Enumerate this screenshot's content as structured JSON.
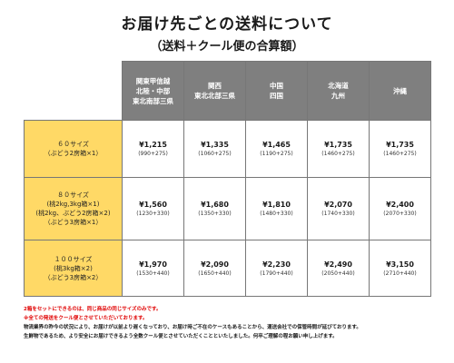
{
  "title": "お届け先ごとの送料について",
  "subtitle": "（送料＋クール便の合算額）",
  "table": {
    "regions": [
      [
        "関東甲信越",
        "北陸・中部",
        "東北南部三県"
      ],
      [
        "関西",
        "東北北部三県"
      ],
      [
        "中国",
        "四国"
      ],
      [
        "北海道",
        "九州"
      ],
      [
        "沖縄"
      ]
    ],
    "rows": [
      {
        "size_lines": [
          "６０サイズ",
          "（ぶどう2房箱×1）"
        ],
        "cells": [
          {
            "price": "¥1,215",
            "breakdown": "(990+275)"
          },
          {
            "price": "¥1,335",
            "breakdown": "(1060+275)"
          },
          {
            "price": "¥1,465",
            "breakdown": "(1190+275)"
          },
          {
            "price": "¥1,735",
            "breakdown": "(1460+275)"
          },
          {
            "price": "¥1,735",
            "breakdown": "(1460+275)"
          }
        ]
      },
      {
        "size_lines": [
          "８０サイズ",
          "(桃2kg,3kg箱×1)",
          "(桃2kg、ぶどう2房箱×2)",
          "（ぶどう3房箱×1）"
        ],
        "cells": [
          {
            "price": "¥1,560",
            "breakdown": "(1230+330)"
          },
          {
            "price": "¥1,680",
            "breakdown": "(1350+330)"
          },
          {
            "price": "¥1,810",
            "breakdown": "(1480+330)"
          },
          {
            "price": "¥2,070",
            "breakdown": "(1740+330)"
          },
          {
            "price": "¥2,400",
            "breakdown": "(2070+330)"
          }
        ]
      },
      {
        "size_lines": [
          "１００サイズ",
          "(桃3kg箱×2)",
          "（ぶどう3房箱×2）"
        ],
        "cells": [
          {
            "price": "¥1,970",
            "breakdown": "(1530+440)"
          },
          {
            "price": "¥2,090",
            "breakdown": "(1650+440)"
          },
          {
            "price": "¥2,230",
            "breakdown": "(1790+440)"
          },
          {
            "price": "¥2,490",
            "breakdown": "(2050+440)"
          },
          {
            "price": "¥3,150",
            "breakdown": "(2710+440)"
          }
        ]
      }
    ]
  },
  "notes": [
    {
      "text": "2箱をセットにできるのは、同じ商品の同じサイズのみです。",
      "color": "red"
    },
    {
      "text": "※全ての発送をクール便とさせていただいております。",
      "color": "red"
    },
    {
      "text": "物流業界の昨今の状況により、お届けが以前より遅くなっており、お届け時ご不在のケースもあることから、運送会社での保管時間が延びております。",
      "color": "black"
    },
    {
      "text": "生鮮物であるため、より安全にお届けできるよう全数クール便とさせていただくことといたしました。何卒ご理解の程お願い申し上げます。",
      "color": "black"
    }
  ],
  "colors": {
    "header_bg": "#7f7f7f",
    "size_bg": "#ffd966",
    "note_red": "#e00000"
  }
}
